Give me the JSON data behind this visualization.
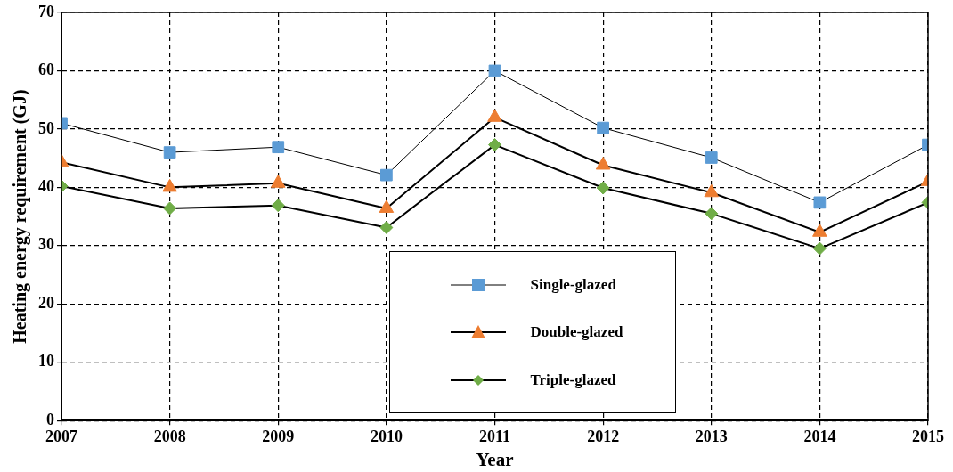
{
  "chart_data": {
    "type": "line",
    "xlabel": "Year",
    "ylabel": "Heating energy requirement (GJ)",
    "x": [
      2007,
      2008,
      2009,
      2010,
      2011,
      2012,
      2013,
      2014,
      2015
    ],
    "xlim": [
      2007,
      2015
    ],
    "xticks": [
      2007,
      2008,
      2009,
      2010,
      2011,
      2012,
      2013,
      2014,
      2015
    ],
    "ylim": [
      0,
      70
    ],
    "yticks": [
      0,
      10,
      20,
      30,
      40,
      50,
      60,
      70
    ],
    "grid": true,
    "legend": "bottom",
    "line_style": "solid",
    "series": [
      {
        "name": "Single-glazed",
        "color": "#5b9bd5",
        "marker": "square",
        "values": [
          51.0,
          46.0,
          46.9,
          42.1,
          60.0,
          50.2,
          45.1,
          37.4,
          47.3
        ]
      },
      {
        "name": "Double-glazed",
        "color": "#ed7d31",
        "marker": "triangle",
        "values": [
          44.3,
          40.0,
          40.7,
          36.4,
          52.0,
          43.8,
          39.1,
          32.3,
          41.0
        ]
      },
      {
        "name": "Triple-glazed",
        "color": "#70ad47",
        "marker": "diamond",
        "values": [
          40.2,
          36.4,
          36.9,
          33.1,
          47.3,
          39.9,
          35.5,
          29.5,
          37.4
        ]
      }
    ]
  }
}
